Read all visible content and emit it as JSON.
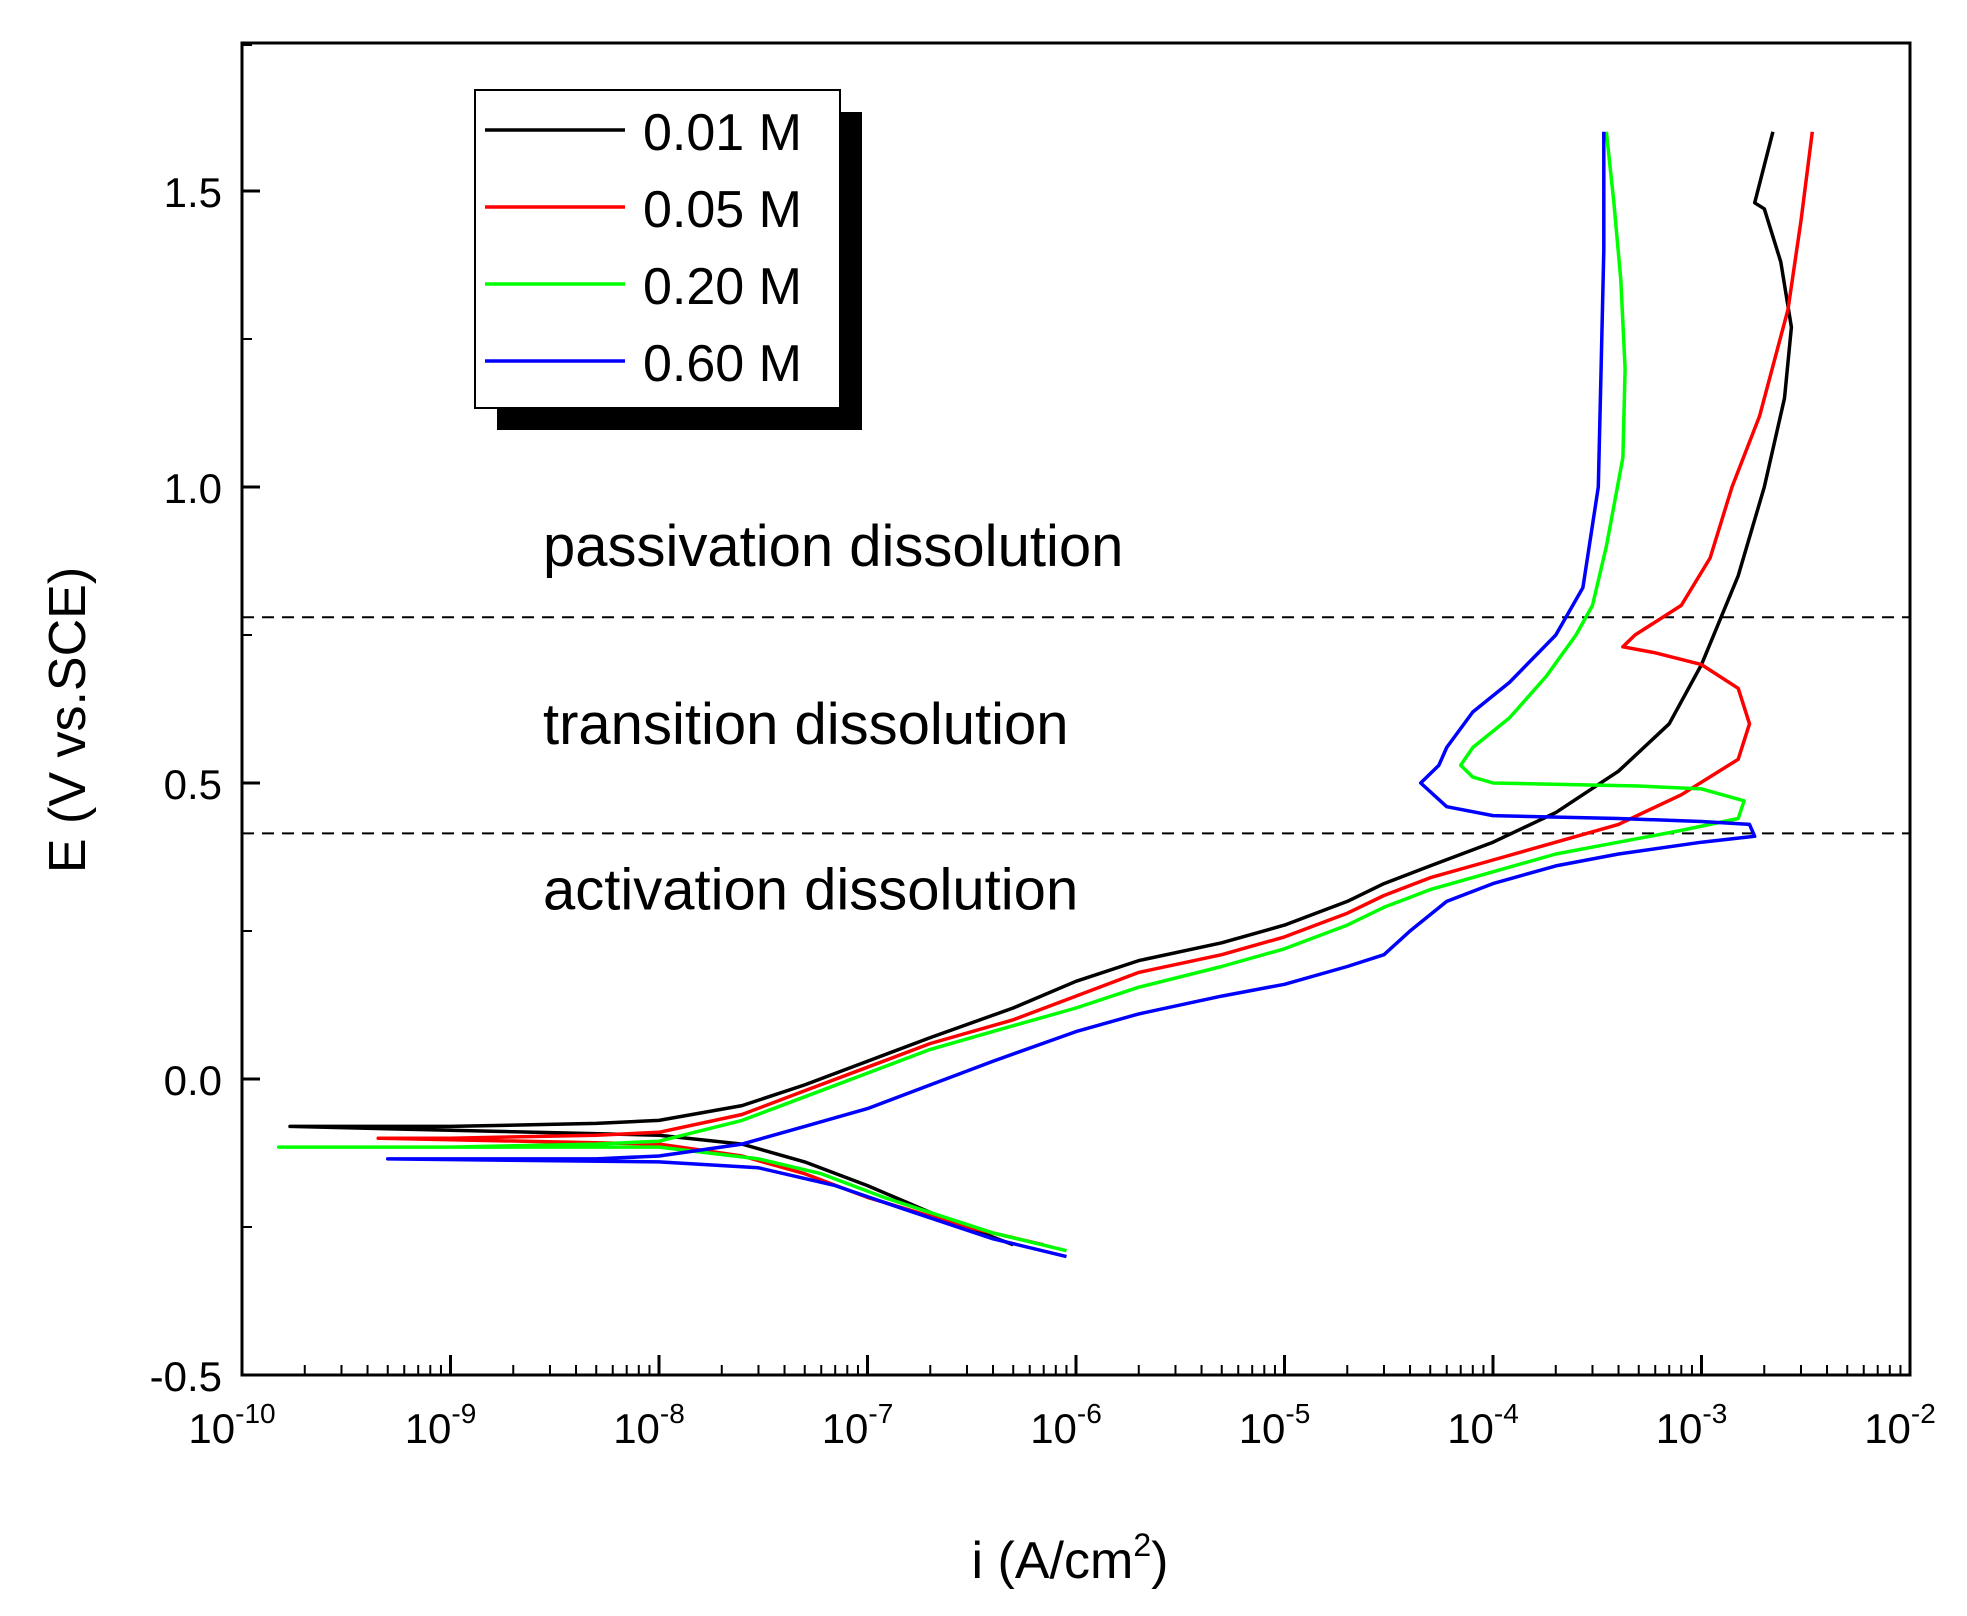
{
  "chart_data": {
    "type": "line",
    "xscale": "log",
    "xlabel": "i (A/cm",
    "xlabel_superscript": "2",
    "xlabel_suffix": ")",
    "ylabel": "E (V vs.SCE)",
    "xlim": [
      1e-10,
      0.01
    ],
    "ylim": [
      -0.5,
      1.75
    ],
    "y_ticks": [
      {
        "v": -0.5,
        "label": "-0.5"
      },
      {
        "v": 0.0,
        "label": "0.0"
      },
      {
        "v": 0.5,
        "label": "0.5"
      },
      {
        "v": 1.0,
        "label": "1.0"
      },
      {
        "v": 1.5,
        "label": "1.5"
      }
    ],
    "x_ticks": [
      {
        "exp": -10,
        "base": "10",
        "sup": "-10"
      },
      {
        "exp": -9,
        "base": "10",
        "sup": "-9"
      },
      {
        "exp": -8,
        "base": "10",
        "sup": "-8"
      },
      {
        "exp": -7,
        "base": "10",
        "sup": "-7"
      },
      {
        "exp": -6,
        "base": "10",
        "sup": "-6"
      },
      {
        "exp": -5,
        "base": "10",
        "sup": "-5"
      },
      {
        "exp": -4,
        "base": "10",
        "sup": "-4"
      },
      {
        "exp": -3,
        "base": "10",
        "sup": "-3"
      },
      {
        "exp": -2,
        "base": "10",
        "sup": "-2"
      }
    ],
    "legend": {
      "placement": "top-left"
    },
    "reference_lines": [
      0.78,
      0.415
    ],
    "annotations": [
      {
        "text": "passivation dissolution",
        "e": 0.9
      },
      {
        "text": "transition dissolution",
        "e": 0.6
      },
      {
        "text": "activation dissolution",
        "e": 0.32
      }
    ],
    "series": [
      {
        "name": "0.01 M",
        "color": "#000000",
        "points": [
          [
            5e-07,
            -0.28
          ],
          [
            2.5e-07,
            -0.24
          ],
          [
            1e-07,
            -0.18
          ],
          [
            5e-08,
            -0.14
          ],
          [
            2.5e-08,
            -0.11
          ],
          [
            1e-08,
            -0.095
          ],
          [
            1.7e-10,
            -0.08
          ],
          [
            1e-09,
            -0.08
          ],
          [
            5e-09,
            -0.075
          ],
          [
            1e-08,
            -0.07
          ],
          [
            2.5e-08,
            -0.045
          ],
          [
            5e-08,
            -0.01
          ],
          [
            1e-07,
            0.03
          ],
          [
            2e-07,
            0.07
          ],
          [
            5e-07,
            0.12
          ],
          [
            1e-06,
            0.165
          ],
          [
            2e-06,
            0.2
          ],
          [
            5e-06,
            0.23
          ],
          [
            1e-05,
            0.26
          ],
          [
            2e-05,
            0.3
          ],
          [
            3e-05,
            0.33
          ],
          [
            5e-05,
            0.36
          ],
          [
            0.0001,
            0.4
          ],
          [
            0.0002,
            0.45
          ],
          [
            0.0004,
            0.52
          ],
          [
            0.0007,
            0.6
          ],
          [
            0.001,
            0.7
          ],
          [
            0.0015,
            0.85
          ],
          [
            0.002,
            1.0
          ],
          [
            0.0025,
            1.15
          ],
          [
            0.0027,
            1.27
          ],
          [
            0.0024,
            1.38
          ],
          [
            0.002,
            1.47
          ],
          [
            0.0018,
            1.48
          ],
          [
            0.0022,
            1.6
          ]
        ]
      },
      {
        "name": "0.05 M",
        "color": "#ff0000",
        "points": [
          [
            7e-07,
            -0.28
          ],
          [
            3e-07,
            -0.25
          ],
          [
            1e-07,
            -0.2
          ],
          [
            5e-08,
            -0.16
          ],
          [
            2.5e-08,
            -0.13
          ],
          [
            1e-08,
            -0.11
          ],
          [
            4.5e-10,
            -0.1
          ],
          [
            1e-09,
            -0.1
          ],
          [
            5e-09,
            -0.095
          ],
          [
            1e-08,
            -0.09
          ],
          [
            2.5e-08,
            -0.06
          ],
          [
            5e-08,
            -0.02
          ],
          [
            1e-07,
            0.02
          ],
          [
            2e-07,
            0.06
          ],
          [
            5e-07,
            0.1
          ],
          [
            1e-06,
            0.14
          ],
          [
            2e-06,
            0.18
          ],
          [
            5e-06,
            0.21
          ],
          [
            1e-05,
            0.24
          ],
          [
            2e-05,
            0.28
          ],
          [
            3e-05,
            0.31
          ],
          [
            5e-05,
            0.34
          ],
          [
            0.0001,
            0.37
          ],
          [
            0.0002,
            0.4
          ],
          [
            0.0004,
            0.43
          ],
          [
            0.0008,
            0.48
          ],
          [
            0.0015,
            0.54
          ],
          [
            0.0017,
            0.6
          ],
          [
            0.0015,
            0.66
          ],
          [
            0.001,
            0.7
          ],
          [
            0.0006,
            0.72
          ],
          [
            0.00042,
            0.73
          ],
          [
            0.00048,
            0.75
          ],
          [
            0.0008,
            0.8
          ],
          [
            0.0011,
            0.88
          ],
          [
            0.0014,
            1.0
          ],
          [
            0.0019,
            1.12
          ],
          [
            0.0026,
            1.3
          ],
          [
            0.003,
            1.45
          ],
          [
            0.0034,
            1.6
          ]
        ]
      },
      {
        "name": "0.20 M",
        "color": "#00ff00",
        "points": [
          [
            9e-07,
            -0.29
          ],
          [
            4e-07,
            -0.26
          ],
          [
            1.2e-07,
            -0.2
          ],
          [
            6e-08,
            -0.16
          ],
          [
            3e-08,
            -0.135
          ],
          [
            1e-08,
            -0.115
          ],
          [
            1.5e-10,
            -0.115
          ],
          [
            1e-09,
            -0.115
          ],
          [
            5e-09,
            -0.11
          ],
          [
            1e-08,
            -0.105
          ],
          [
            2.5e-08,
            -0.07
          ],
          [
            5e-08,
            -0.03
          ],
          [
            1e-07,
            0.01
          ],
          [
            2e-07,
            0.05
          ],
          [
            5e-07,
            0.09
          ],
          [
            1e-06,
            0.12
          ],
          [
            2e-06,
            0.155
          ],
          [
            5e-06,
            0.19
          ],
          [
            1e-05,
            0.22
          ],
          [
            2e-05,
            0.26
          ],
          [
            3e-05,
            0.29
          ],
          [
            5e-05,
            0.32
          ],
          [
            0.0001,
            0.35
          ],
          [
            0.0002,
            0.38
          ],
          [
            0.0004,
            0.4
          ],
          [
            0.0008,
            0.42
          ],
          [
            0.0015,
            0.44
          ],
          [
            0.0016,
            0.47
          ],
          [
            0.001,
            0.49
          ],
          [
            0.0005,
            0.495
          ],
          [
            0.0001,
            0.5
          ],
          [
            8e-05,
            0.51
          ],
          [
            7e-05,
            0.53
          ],
          [
            8e-05,
            0.56
          ],
          [
            0.00012,
            0.61
          ],
          [
            0.00018,
            0.68
          ],
          [
            0.00025,
            0.75
          ],
          [
            0.0003,
            0.8
          ],
          [
            0.00035,
            0.9
          ],
          [
            0.00042,
            1.05
          ],
          [
            0.00043,
            1.2
          ],
          [
            0.00041,
            1.35
          ],
          [
            0.00038,
            1.48
          ],
          [
            0.00035,
            1.6
          ]
        ]
      },
      {
        "name": "0.60 M",
        "color": "#0000ff",
        "points": [
          [
            9e-07,
            -0.3
          ],
          [
            4e-07,
            -0.27
          ],
          [
            1.5e-07,
            -0.22
          ],
          [
            7e-08,
            -0.18
          ],
          [
            3e-08,
            -0.15
          ],
          [
            1e-08,
            -0.14
          ],
          [
            5e-10,
            -0.135
          ],
          [
            1e-09,
            -0.135
          ],
          [
            5e-09,
            -0.135
          ],
          [
            1e-08,
            -0.13
          ],
          [
            2.5e-08,
            -0.11
          ],
          [
            5e-08,
            -0.08
          ],
          [
            1e-07,
            -0.05
          ],
          [
            2e-07,
            -0.01
          ],
          [
            4e-07,
            0.03
          ],
          [
            1e-06,
            0.08
          ],
          [
            2e-06,
            0.11
          ],
          [
            5e-06,
            0.14
          ],
          [
            1e-05,
            0.16
          ],
          [
            2e-05,
            0.19
          ],
          [
            3e-05,
            0.21
          ],
          [
            4e-05,
            0.25
          ],
          [
            6e-05,
            0.3
          ],
          [
            0.0001,
            0.33
          ],
          [
            0.0002,
            0.36
          ],
          [
            0.0004,
            0.38
          ],
          [
            0.001,
            0.4
          ],
          [
            0.0018,
            0.41
          ],
          [
            0.0017,
            0.43
          ],
          [
            0.001,
            0.435
          ],
          [
            0.0004,
            0.44
          ],
          [
            0.0001,
            0.445
          ],
          [
            6e-05,
            0.46
          ],
          [
            4.5e-05,
            0.5
          ],
          [
            5.5e-05,
            0.53
          ],
          [
            6e-05,
            0.56
          ],
          [
            8e-05,
            0.62
          ],
          [
            0.00012,
            0.67
          ],
          [
            0.0002,
            0.75
          ],
          [
            0.00027,
            0.83
          ],
          [
            0.00032,
            1.0
          ],
          [
            0.00033,
            1.2
          ],
          [
            0.00034,
            1.4
          ],
          [
            0.00034,
            1.6
          ]
        ]
      }
    ]
  }
}
